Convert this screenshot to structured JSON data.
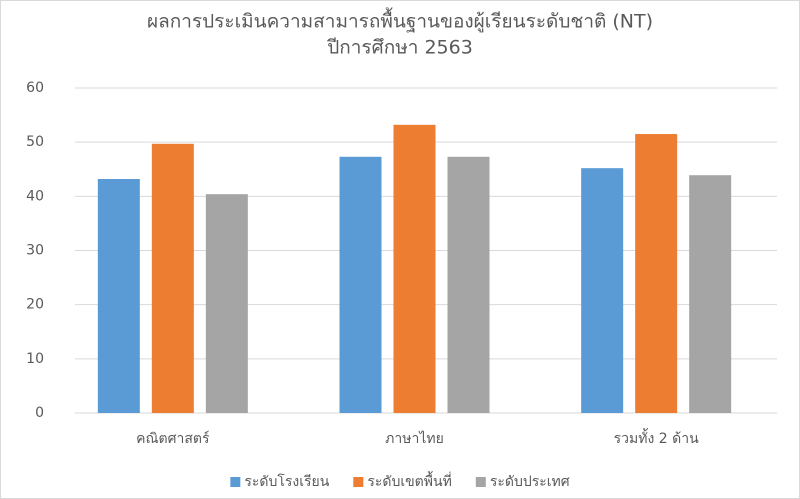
{
  "chart_data": {
    "type": "bar",
    "title": [
      "ผลการประเมินความสามารถพื้นฐานของผู้เรียนระดับชาติ (NT)",
      "ปีการศึกษา 2563"
    ],
    "categories": [
      "คณิตศาสตร์",
      "ภาษาไทย",
      "รวมทั้ง 2 ด้าน"
    ],
    "series": [
      {
        "name": "ระดับโรงเรียน",
        "color": "#5b9bd5",
        "values": [
          43.2,
          47.3,
          45.2
        ]
      },
      {
        "name": "ระดับเขตพื้นที่",
        "color": "#ed7d31",
        "values": [
          49.7,
          53.2,
          51.5
        ]
      },
      {
        "name": "ระดับประเทศ",
        "color": "#a5a5a5",
        "values": [
          40.4,
          47.3,
          43.9
        ]
      }
    ],
    "ylim": [
      0,
      60
    ],
    "yticks": [
      0,
      10,
      20,
      30,
      40,
      50,
      60
    ],
    "grid": true,
    "legend": "bottom"
  }
}
